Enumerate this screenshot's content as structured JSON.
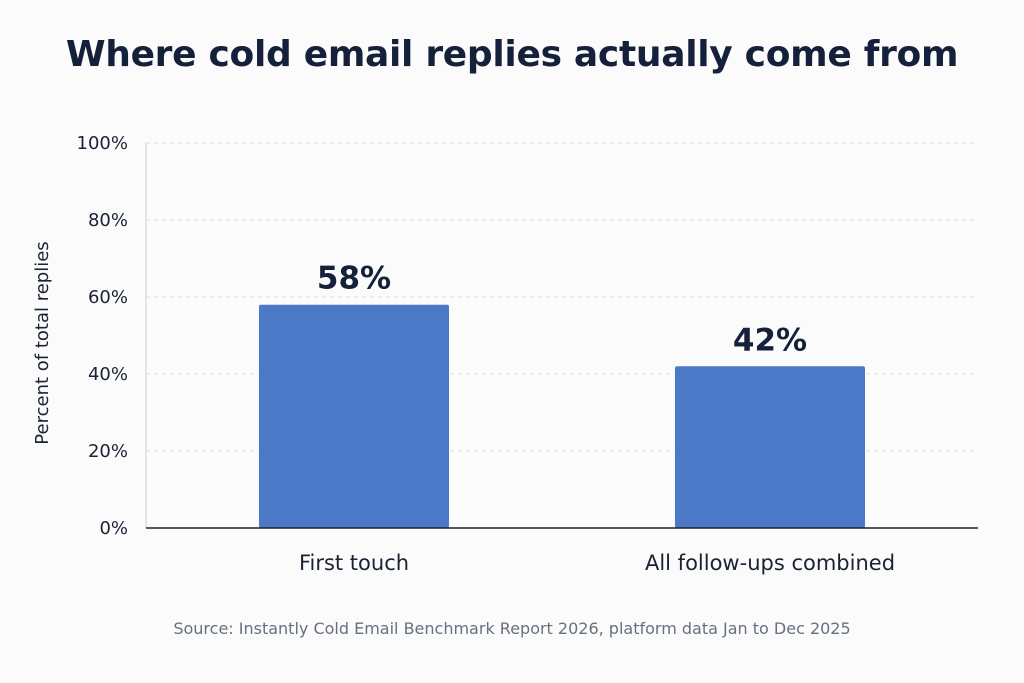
{
  "chart_data": {
    "type": "bar",
    "title": "Where cold email replies actually come from",
    "xlabel": "",
    "ylabel": "Percent of total replies",
    "categories": [
      "First touch",
      "All follow-ups combined"
    ],
    "values": [
      58,
      42
    ],
    "value_labels": [
      "58%",
      "42%"
    ],
    "ylim": [
      0,
      100
    ],
    "yticks": [
      0,
      20,
      40,
      60,
      80,
      100
    ],
    "ytick_labels": [
      "0%",
      "20%",
      "40%",
      "60%",
      "80%",
      "100%"
    ],
    "grid": true,
    "legend": "none",
    "bar_color": "#4c78c8",
    "source": "Source: Instantly Cold Email Benchmark Report 2026, platform data Jan to Dec 2025"
  }
}
